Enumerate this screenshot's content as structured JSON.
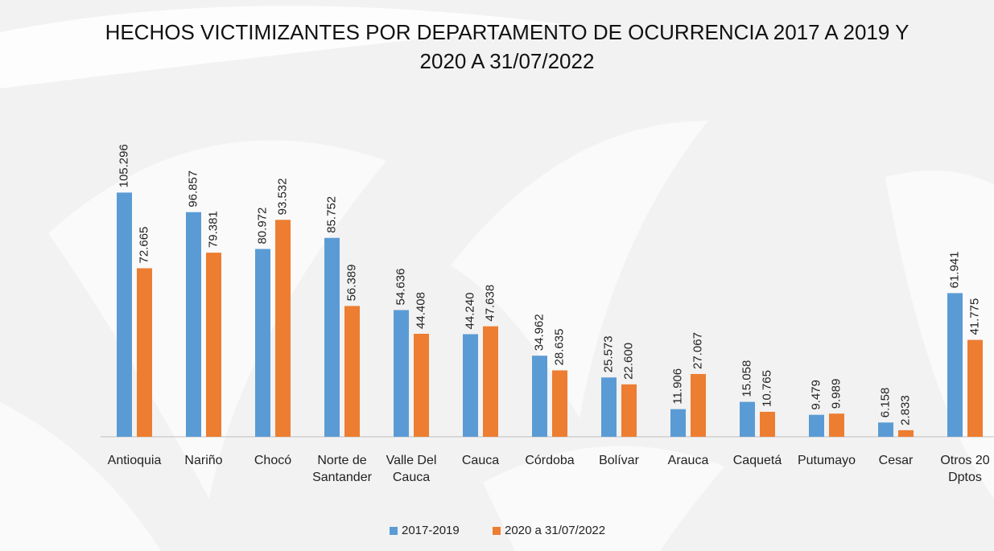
{
  "chart_data": {
    "type": "bar",
    "title": "HECHOS VICTIMIZANTES POR DEPARTAMENTO DE OCURRENCIA 2017 A 2019 Y 2020 A 31/07/2022",
    "categories": [
      "Antioquia",
      "Nariño",
      "Chocó",
      "Norte de Santander",
      "Valle Del Cauca",
      "Cauca",
      "Córdoba",
      "Bolívar",
      "Arauca",
      "Caquetá",
      "Putumayo",
      "Cesar",
      "Otros 20 Dptos"
    ],
    "series": [
      {
        "name": "2017-2019",
        "color": "#5b9bd5",
        "values": [
          105296,
          96857,
          80972,
          85752,
          54636,
          44240,
          34962,
          25573,
          11906,
          15058,
          9479,
          6158,
          61941
        ],
        "value_labels": [
          "105.296",
          "96.857",
          "80.972",
          "85.752",
          "54.636",
          "44.240",
          "34.962",
          "25.573",
          "11.906",
          "15.058",
          "9.479",
          "6.158",
          "61.941"
        ]
      },
      {
        "name": "2020 a 31/07/2022",
        "color": "#ed7d31",
        "values": [
          72665,
          79381,
          93532,
          56389,
          44408,
          47638,
          28635,
          22600,
          27067,
          10765,
          9989,
          2833,
          41775
        ],
        "value_labels": [
          "72.665",
          "79.381",
          "93.532",
          "56.389",
          "44.408",
          "47.638",
          "28.635",
          "22.600",
          "27.067",
          "10.765",
          "9.989",
          "2.833",
          "41.775"
        ]
      }
    ],
    "ylim": [
      0,
      120000
    ]
  }
}
